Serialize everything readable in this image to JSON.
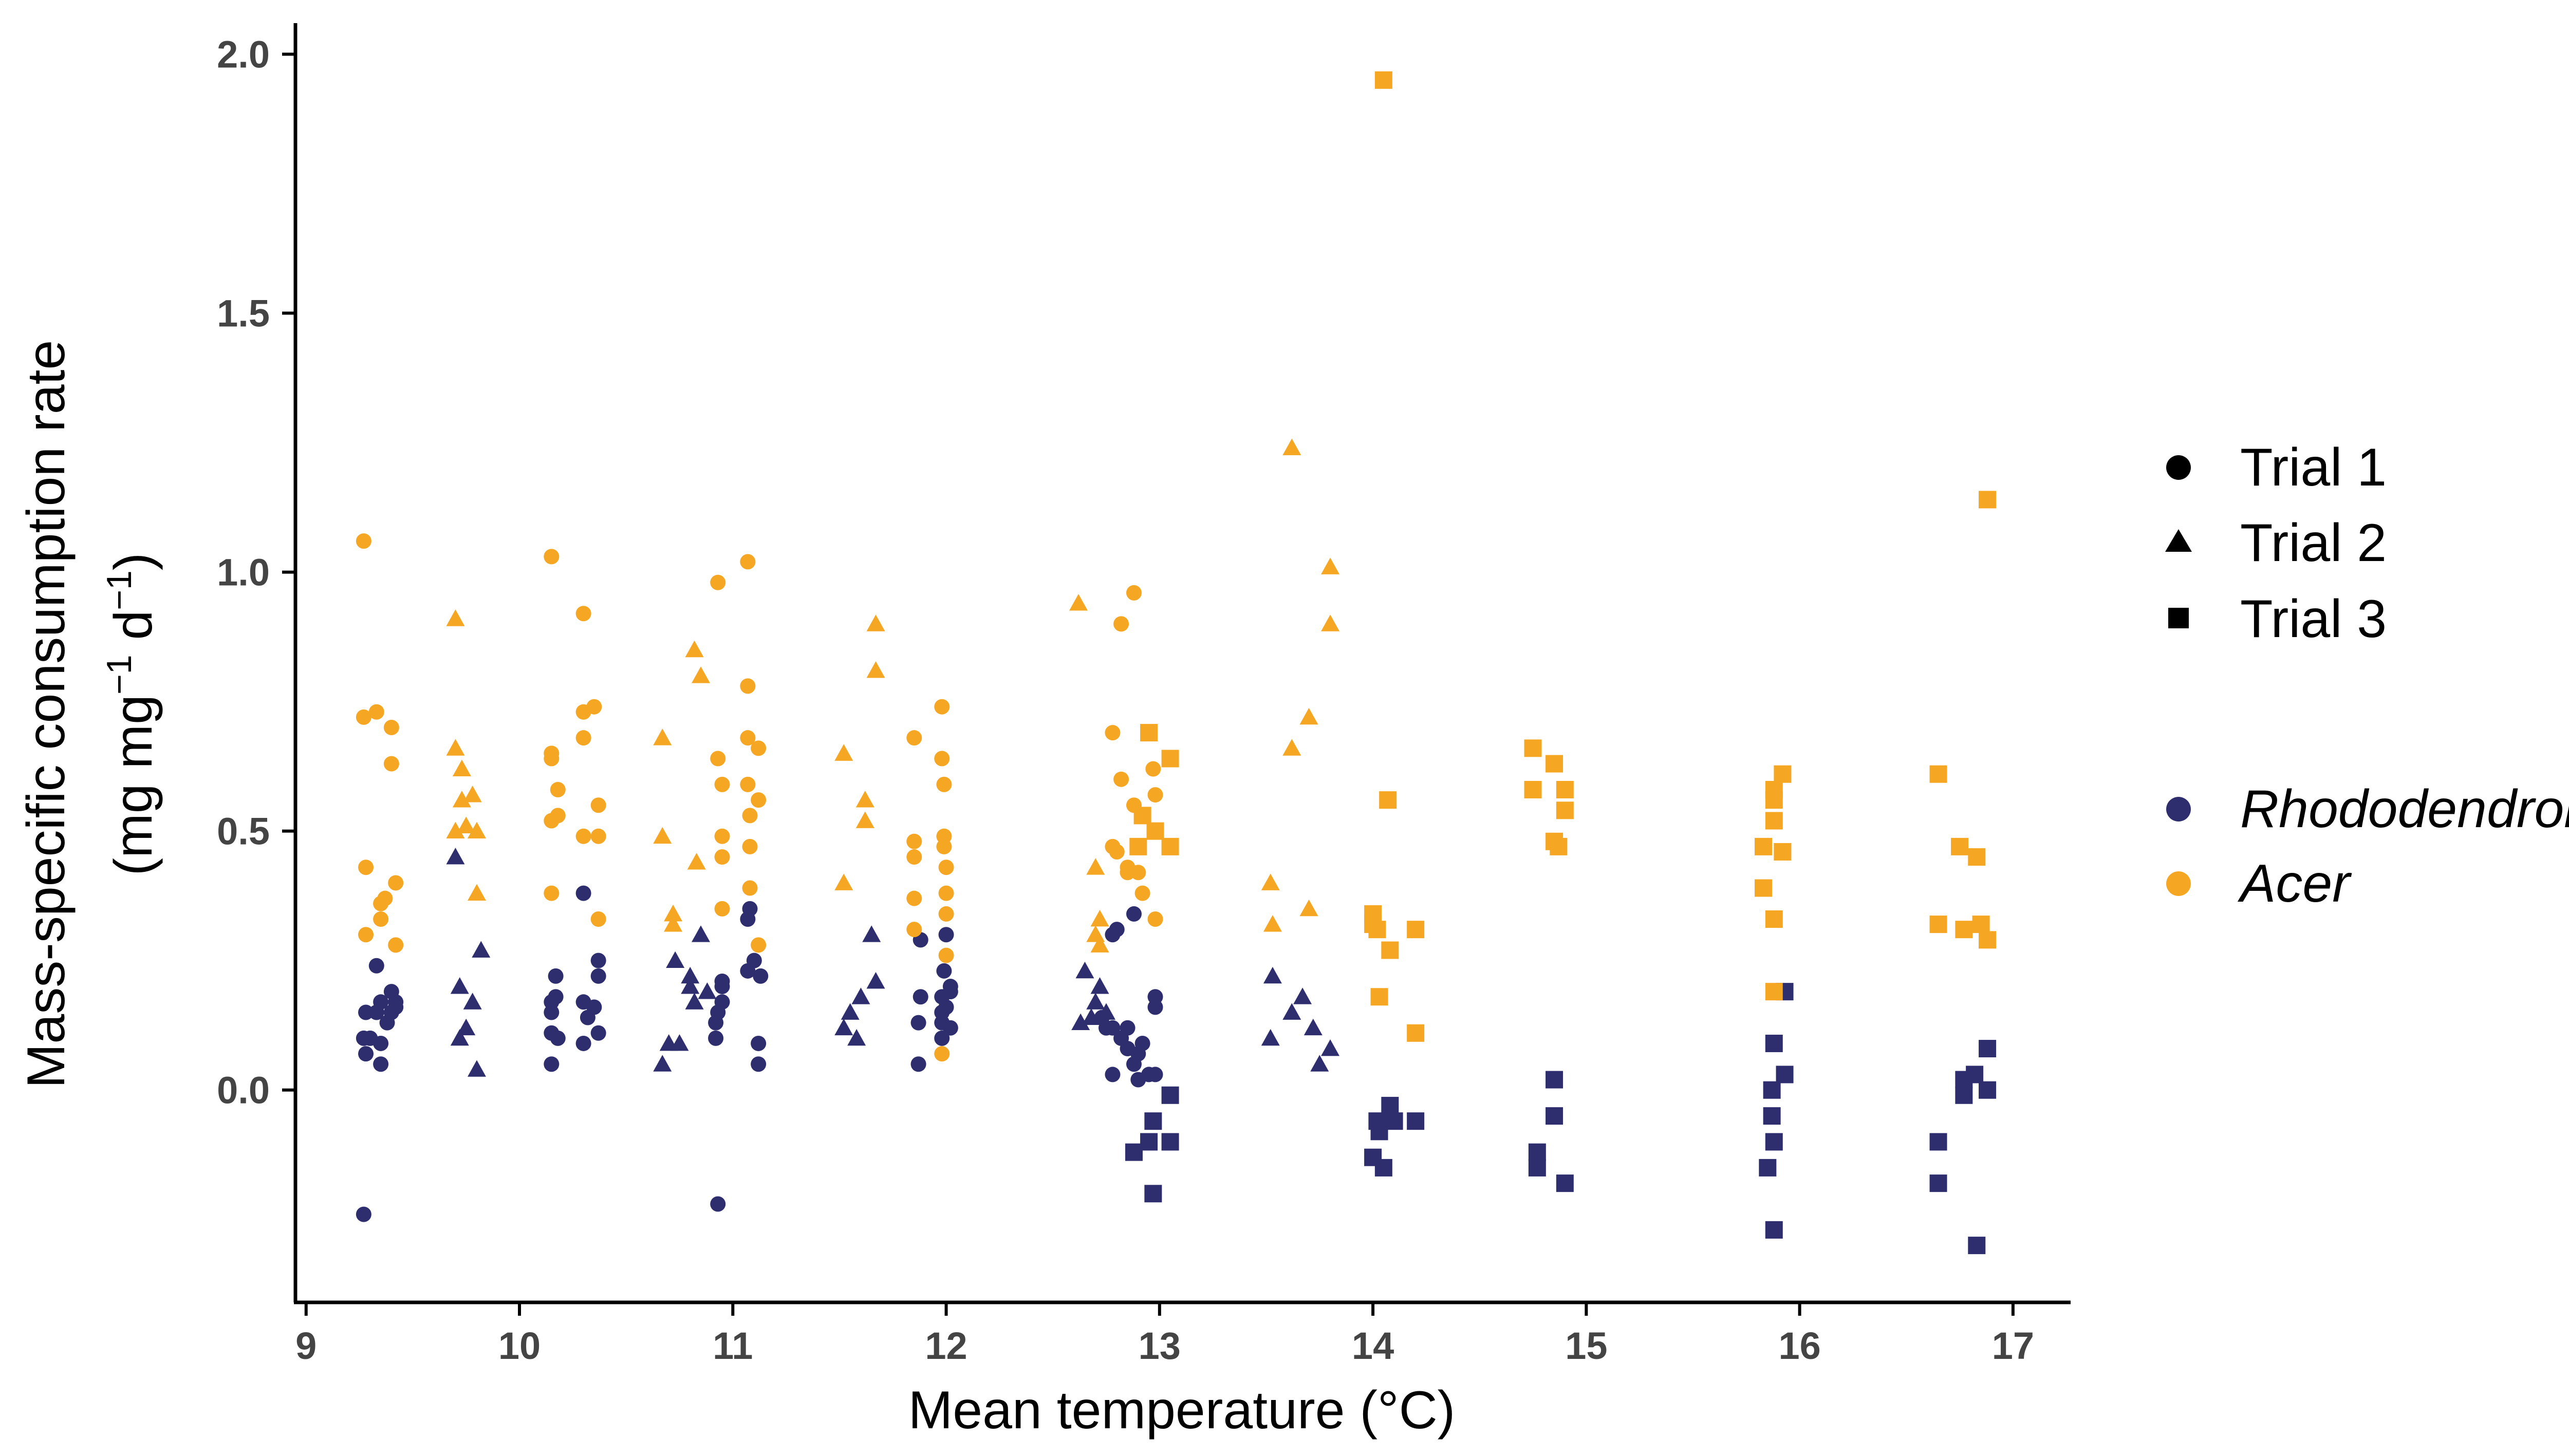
{
  "chart_data": {
    "type": "scatter",
    "title": "",
    "xlabel": "Mean temperature (°C)",
    "ylabel": {
      "line1": "Mass-specific consumption rate",
      "line2_prefix": "(mg mg",
      "line2_sup1": "−1",
      "line2_mid": " d",
      "line2_sup2": "−1",
      "line2_suffix": ")"
    },
    "xlim": [
      8.95,
      17.27
    ],
    "ylim": [
      -0.41,
      2.06
    ],
    "x_ticks": [
      9,
      10,
      11,
      12,
      13,
      14,
      15,
      16,
      17
    ],
    "x_tick_labels": [
      "9",
      "10",
      "11",
      "12",
      "13",
      "14",
      "15",
      "16",
      "17"
    ],
    "y_ticks": [
      0,
      0.5,
      1,
      1.5,
      2
    ],
    "y_tick_labels": [
      "0.0",
      "0.5",
      "1.0",
      "1.5",
      "2.0"
    ],
    "grid": false,
    "legend_position": "right",
    "shape_legend": [
      {
        "label": "Trial 1",
        "shape": "circle"
      },
      {
        "label": "Trial 2",
        "shape": "triangle"
      },
      {
        "label": "Trial 3",
        "shape": "square"
      }
    ],
    "color_legend": [
      {
        "label": "Rhododendron",
        "color": "#2e2e6e"
      },
      {
        "label": "Acer",
        "color": "#f5a623"
      }
    ],
    "series": [
      {
        "name": "Rhododendron",
        "color": "#2e2e6e",
        "trial1": [
          [
            9.27,
            -0.24
          ],
          [
            9.28,
            0.07
          ],
          [
            9.27,
            0.1
          ],
          [
            9.28,
            0.15
          ],
          [
            9.3,
            0.1
          ],
          [
            9.33,
            0.15
          ],
          [
            9.33,
            0.24
          ],
          [
            9.35,
            0.05
          ],
          [
            9.35,
            0.09
          ],
          [
            9.35,
            0.17
          ],
          [
            9.38,
            0.13
          ],
          [
            9.4,
            0.15
          ],
          [
            9.4,
            0.19
          ],
          [
            9.42,
            0.17
          ],
          [
            9.42,
            0.16
          ],
          [
            10.15,
            0.15
          ],
          [
            10.15,
            0.05
          ],
          [
            10.15,
            0.11
          ],
          [
            10.15,
            0.17
          ],
          [
            10.17,
            0.18
          ],
          [
            10.17,
            0.22
          ],
          [
            10.18,
            0.1
          ],
          [
            10.3,
            0.09
          ],
          [
            10.3,
            0.17
          ],
          [
            10.3,
            0.38
          ],
          [
            10.32,
            0.14
          ],
          [
            10.35,
            0.16
          ],
          [
            10.37,
            0.22
          ],
          [
            10.37,
            0.11
          ],
          [
            10.37,
            0.25
          ],
          [
            10.93,
            -0.22
          ],
          [
            10.92,
            0.1
          ],
          [
            10.92,
            0.13
          ],
          [
            10.93,
            0.15
          ],
          [
            10.95,
            0.2
          ],
          [
            10.95,
            0.17
          ],
          [
            10.95,
            0.21
          ],
          [
            11.07,
            0.23
          ],
          [
            11.07,
            0.33
          ],
          [
            11.08,
            0.35
          ],
          [
            11.1,
            0.25
          ],
          [
            11.12,
            0.05
          ],
          [
            11.12,
            0.09
          ],
          [
            11.13,
            0.22
          ],
          [
            11.87,
            0.05
          ],
          [
            11.87,
            0.13
          ],
          [
            11.88,
            0.18
          ],
          [
            11.88,
            0.29
          ],
          [
            11.98,
            0.1
          ],
          [
            11.98,
            0.13
          ],
          [
            11.98,
            0.15
          ],
          [
            11.98,
            0.18
          ],
          [
            11.99,
            0.23
          ],
          [
            12.0,
            0.16
          ],
          [
            12.0,
            0.3
          ],
          [
            12.02,
            0.12
          ],
          [
            12.02,
            0.19
          ],
          [
            12.02,
            0.2
          ],
          [
            12.73,
            0.14
          ],
          [
            12.75,
            0.12
          ],
          [
            12.78,
            0.03
          ],
          [
            12.78,
            0.12
          ],
          [
            12.78,
            0.3
          ],
          [
            12.8,
            0.31
          ],
          [
            12.82,
            0.1
          ],
          [
            12.85,
            0.08
          ],
          [
            12.85,
            0.12
          ],
          [
            12.88,
            0.34
          ],
          [
            12.88,
            0.05
          ],
          [
            12.9,
            0.02
          ],
          [
            12.9,
            0.07
          ],
          [
            12.92,
            0.09
          ],
          [
            12.95,
            0.03
          ],
          [
            12.98,
            0.16
          ],
          [
            12.98,
            0.18
          ],
          [
            12.98,
            0.03
          ]
        ],
        "trial2": [
          [
            9.7,
            0.45
          ],
          [
            9.72,
            0.1
          ],
          [
            9.72,
            0.2
          ],
          [
            9.75,
            0.12
          ],
          [
            9.78,
            0.17
          ],
          [
            9.8,
            0.04
          ],
          [
            9.82,
            0.27
          ],
          [
            10.67,
            0.05
          ],
          [
            10.7,
            0.09
          ],
          [
            10.73,
            0.25
          ],
          [
            10.75,
            0.09
          ],
          [
            10.8,
            0.2
          ],
          [
            10.8,
            0.22
          ],
          [
            10.82,
            0.17
          ],
          [
            10.85,
            0.3
          ],
          [
            10.88,
            0.19
          ],
          [
            11.52,
            0.12
          ],
          [
            11.55,
            0.15
          ],
          [
            11.58,
            0.1
          ],
          [
            11.6,
            0.18
          ],
          [
            11.65,
            0.3
          ],
          [
            11.67,
            0.21
          ],
          [
            12.63,
            0.13
          ],
          [
            12.65,
            0.23
          ],
          [
            12.68,
            0.14
          ],
          [
            12.7,
            0.17
          ],
          [
            12.72,
            0.2
          ],
          [
            12.75,
            0.15
          ],
          [
            13.52,
            0.1
          ],
          [
            13.53,
            0.22
          ],
          [
            13.62,
            0.15
          ],
          [
            13.67,
            0.18
          ],
          [
            13.72,
            0.12
          ],
          [
            13.75,
            0.05
          ],
          [
            13.8,
            0.08
          ]
        ],
        "trial3": [
          [
            12.88,
            -0.12
          ],
          [
            12.95,
            -0.1
          ],
          [
            12.97,
            -0.2
          ],
          [
            12.97,
            -0.06
          ],
          [
            13.05,
            -0.01
          ],
          [
            13.05,
            -0.1
          ],
          [
            14.0,
            -0.13
          ],
          [
            14.02,
            -0.06
          ],
          [
            14.03,
            -0.08
          ],
          [
            14.05,
            -0.15
          ],
          [
            14.08,
            -0.03
          ],
          [
            14.1,
            -0.06
          ],
          [
            14.2,
            -0.06
          ],
          [
            14.77,
            -0.12
          ],
          [
            14.77,
            -0.15
          ],
          [
            14.85,
            -0.05
          ],
          [
            14.85,
            0.02
          ],
          [
            14.9,
            -0.18
          ],
          [
            15.85,
            -0.15
          ],
          [
            15.87,
            0.0
          ],
          [
            15.87,
            -0.05
          ],
          [
            15.88,
            -0.1
          ],
          [
            15.88,
            -0.27
          ],
          [
            15.88,
            0.09
          ],
          [
            15.93,
            0.19
          ],
          [
            15.93,
            0.03
          ],
          [
            16.65,
            -0.18
          ],
          [
            16.65,
            -0.1
          ],
          [
            16.77,
            -0.01
          ],
          [
            16.77,
            0.02
          ],
          [
            16.82,
            0.03
          ],
          [
            16.83,
            -0.3
          ],
          [
            16.88,
            0.08
          ],
          [
            16.88,
            0.0
          ]
        ]
      },
      {
        "name": "Acer",
        "color": "#f5a623",
        "trial1": [
          [
            9.27,
            1.06
          ],
          [
            9.27,
            0.72
          ],
          [
            9.28,
            0.43
          ],
          [
            9.28,
            0.3
          ],
          [
            9.33,
            0.73
          ],
          [
            9.35,
            0.33
          ],
          [
            9.35,
            0.36
          ],
          [
            9.37,
            0.37
          ],
          [
            9.4,
            0.7
          ],
          [
            9.4,
            0.63
          ],
          [
            9.42,
            0.4
          ],
          [
            9.42,
            0.28
          ],
          [
            10.15,
            1.03
          ],
          [
            10.15,
            0.65
          ],
          [
            10.15,
            0.64
          ],
          [
            10.15,
            0.52
          ],
          [
            10.15,
            0.38
          ],
          [
            10.18,
            0.58
          ],
          [
            10.18,
            0.53
          ],
          [
            10.3,
            0.92
          ],
          [
            10.3,
            0.73
          ],
          [
            10.3,
            0.68
          ],
          [
            10.3,
            0.49
          ],
          [
            10.35,
            0.74
          ],
          [
            10.37,
            0.55
          ],
          [
            10.37,
            0.49
          ],
          [
            10.37,
            0.33
          ],
          [
            10.93,
            0.98
          ],
          [
            10.93,
            0.64
          ],
          [
            10.95,
            0.59
          ],
          [
            10.95,
            0.49
          ],
          [
            10.95,
            0.45
          ],
          [
            10.95,
            0.35
          ],
          [
            11.07,
            1.02
          ],
          [
            11.07,
            0.78
          ],
          [
            11.07,
            0.68
          ],
          [
            11.07,
            0.59
          ],
          [
            11.08,
            0.53
          ],
          [
            11.08,
            0.47
          ],
          [
            11.08,
            0.39
          ],
          [
            11.12,
            0.66
          ],
          [
            11.12,
            0.56
          ],
          [
            11.12,
            0.28
          ],
          [
            11.85,
            0.68
          ],
          [
            11.85,
            0.48
          ],
          [
            11.85,
            0.45
          ],
          [
            11.85,
            0.37
          ],
          [
            11.85,
            0.31
          ],
          [
            11.98,
            0.74
          ],
          [
            11.98,
            0.64
          ],
          [
            11.99,
            0.59
          ],
          [
            11.99,
            0.49
          ],
          [
            11.99,
            0.47
          ],
          [
            12.0,
            0.43
          ],
          [
            12.0,
            0.38
          ],
          [
            12.0,
            0.34
          ],
          [
            12.0,
            0.26
          ],
          [
            11.98,
            0.07
          ],
          [
            12.78,
            0.69
          ],
          [
            12.78,
            0.47
          ],
          [
            12.8,
            0.46
          ],
          [
            12.82,
            0.6
          ],
          [
            12.82,
            0.9
          ],
          [
            12.85,
            0.43
          ],
          [
            12.85,
            0.42
          ],
          [
            12.88,
            0.96
          ],
          [
            12.88,
            0.55
          ],
          [
            12.9,
            0.42
          ],
          [
            12.92,
            0.38
          ],
          [
            12.95,
            0.69
          ],
          [
            12.97,
            0.62
          ],
          [
            12.98,
            0.57
          ],
          [
            12.98,
            0.33
          ]
        ],
        "trial2": [
          [
            9.7,
            0.91
          ],
          [
            9.7,
            0.66
          ],
          [
            9.7,
            0.5
          ],
          [
            9.73,
            0.62
          ],
          [
            9.73,
            0.56
          ],
          [
            9.75,
            0.51
          ],
          [
            9.78,
            0.57
          ],
          [
            9.8,
            0.5
          ],
          [
            9.8,
            0.38
          ],
          [
            10.67,
            0.68
          ],
          [
            10.67,
            0.49
          ],
          [
            10.72,
            0.34
          ],
          [
            10.72,
            0.32
          ],
          [
            10.82,
            0.85
          ],
          [
            10.83,
            0.44
          ],
          [
            10.85,
            0.8
          ],
          [
            11.52,
            0.65
          ],
          [
            11.52,
            0.4
          ],
          [
            11.62,
            0.56
          ],
          [
            11.62,
            0.52
          ],
          [
            11.67,
            0.9
          ],
          [
            11.67,
            0.81
          ],
          [
            12.62,
            0.94
          ],
          [
            12.7,
            0.43
          ],
          [
            12.7,
            0.3
          ],
          [
            12.72,
            0.33
          ],
          [
            12.72,
            0.28
          ],
          [
            13.52,
            0.4
          ],
          [
            13.53,
            0.32
          ],
          [
            13.62,
            1.24
          ],
          [
            13.62,
            0.66
          ],
          [
            13.7,
            0.72
          ],
          [
            13.7,
            0.35
          ],
          [
            13.8,
            1.01
          ],
          [
            13.8,
            0.9
          ]
        ],
        "trial3": [
          [
            12.9,
            0.47
          ],
          [
            12.92,
            0.53
          ],
          [
            12.95,
            0.69
          ],
          [
            12.98,
            0.5
          ],
          [
            13.05,
            0.64
          ],
          [
            13.05,
            0.47
          ],
          [
            14.0,
            0.34
          ],
          [
            14.0,
            0.32
          ],
          [
            14.02,
            0.31
          ],
          [
            14.03,
            0.18
          ],
          [
            14.05,
            1.95
          ],
          [
            14.07,
            0.56
          ],
          [
            14.08,
            0.27
          ],
          [
            14.2,
            0.31
          ],
          [
            14.2,
            0.11
          ],
          [
            14.75,
            0.66
          ],
          [
            14.75,
            0.58
          ],
          [
            14.85,
            0.63
          ],
          [
            14.85,
            0.48
          ],
          [
            14.87,
            0.47
          ],
          [
            14.9,
            0.58
          ],
          [
            14.9,
            0.54
          ],
          [
            15.83,
            0.47
          ],
          [
            15.83,
            0.39
          ],
          [
            15.88,
            0.58
          ],
          [
            15.88,
            0.56
          ],
          [
            15.88,
            0.52
          ],
          [
            15.88,
            0.33
          ],
          [
            15.88,
            0.19
          ],
          [
            15.92,
            0.61
          ],
          [
            15.92,
            0.46
          ],
          [
            16.65,
            0.61
          ],
          [
            16.65,
            0.32
          ],
          [
            16.75,
            0.47
          ],
          [
            16.77,
            0.31
          ],
          [
            16.83,
            0.45
          ],
          [
            16.85,
            0.32
          ],
          [
            16.88,
            0.29
          ],
          [
            16.88,
            1.14
          ]
        ]
      }
    ]
  }
}
